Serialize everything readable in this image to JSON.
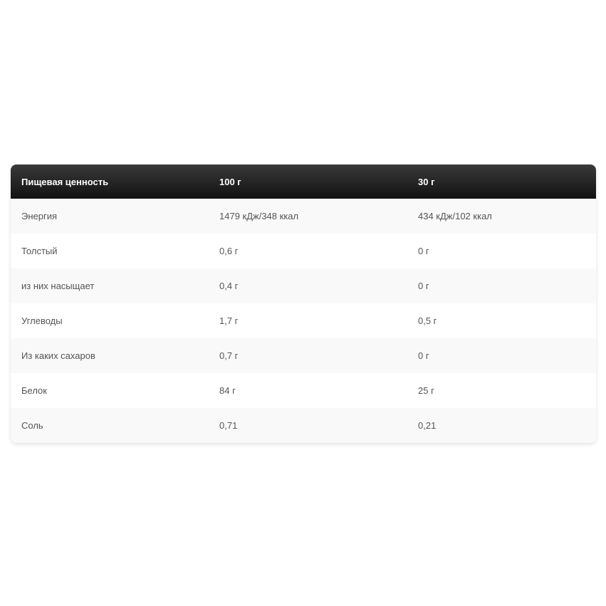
{
  "header": [
    "Пищевая ценность",
    "100 г",
    "30 г"
  ],
  "rows": [
    [
      "Энергия",
      "1479 кДж/348 ккал",
      "434 кДж/102 ккал"
    ],
    [
      "Толстый",
      "0,6 г",
      "0 г"
    ],
    [
      "из них насыщает",
      "0,4 г",
      "0 г"
    ],
    [
      "Углеводы",
      "1,7 г",
      "0,5 г"
    ],
    [
      "Из каких сахаров",
      "0,7 г",
      "0 г"
    ],
    [
      "Белок",
      "84 г",
      "25 г"
    ],
    [
      "Соль",
      "0,71",
      "0,21"
    ]
  ]
}
